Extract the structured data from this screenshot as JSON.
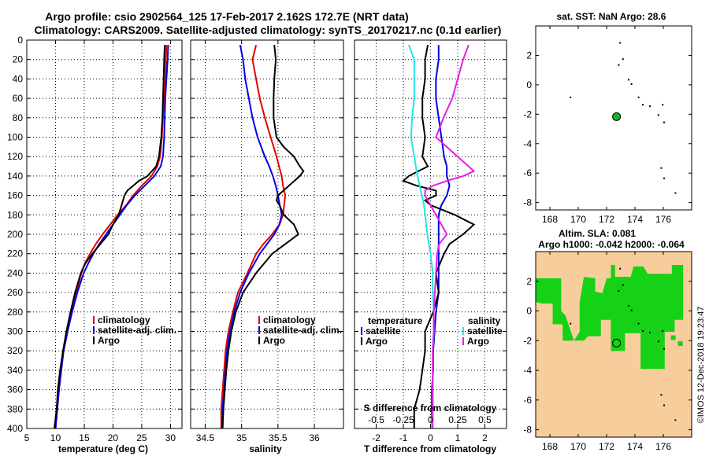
{
  "title_line1": "Argo profile: csio 2902564_125 17-Feb-2017 2.162S 172.7E (NRT data)",
  "title_line2": "Climatology: CARS2009. Satellite-adjusted climatology: synTS_20170217.nc (0.1d earlier)",
  "side_text": "©IMOS 12-Dec-2018 19:23:47",
  "colors": {
    "climatology": "#e00000",
    "satellite": "#0000e6",
    "argo": "#000000",
    "cyan": "#22e6e6",
    "magenta": "#e61ee6",
    "land": "#f8cd9c",
    "ocean": "#16d216",
    "station": "#1fb21f"
  },
  "chart_data": [
    {
      "type": "line",
      "id": "temperature",
      "xlabel": "temperature (deg C)",
      "ylabel": "depth",
      "xlim": [
        5,
        32
      ],
      "ylim": [
        400,
        0
      ],
      "xticks": [
        5,
        10,
        15,
        20,
        25,
        30
      ],
      "yticks": [
        0,
        20,
        40,
        60,
        80,
        100,
        120,
        140,
        160,
        180,
        200,
        220,
        240,
        260,
        280,
        300,
        320,
        340,
        360,
        380,
        400
      ],
      "legend": [
        "climatology",
        "satellite-adj. clim.",
        "Argo"
      ],
      "series": [
        {
          "name": "climatology",
          "depth": [
            5,
            20,
            40,
            60,
            80,
            100,
            120,
            130,
            140,
            150,
            160,
            170,
            180,
            190,
            200,
            210,
            220,
            230,
            240,
            260,
            280,
            300,
            320,
            340,
            360,
            380,
            400
          ],
          "values": [
            29.3,
            29.2,
            29.1,
            28.9,
            28.7,
            28.5,
            28.2,
            27.7,
            26.7,
            25.0,
            23.5,
            22.3,
            20.8,
            19.5,
            18.2,
            17.0,
            16.0,
            15.1,
            14.5,
            13.6,
            12.8,
            12.1,
            11.4,
            11.0,
            10.6,
            10.3,
            10.0
          ]
        },
        {
          "name": "satellite-adj. clim.",
          "depth": [
            5,
            20,
            40,
            60,
            80,
            100,
            120,
            130,
            140,
            150,
            160,
            170,
            180,
            190,
            200,
            210,
            220,
            230,
            240,
            260,
            280,
            300,
            320,
            340,
            360,
            380,
            400
          ],
          "values": [
            29.6,
            29.5,
            29.3,
            29.1,
            29.0,
            28.9,
            28.7,
            28.3,
            27.2,
            25.5,
            23.8,
            22.4,
            21.2,
            20.0,
            18.8,
            17.6,
            16.6,
            15.7,
            14.9,
            13.8,
            12.9,
            12.1,
            11.4,
            11.0,
            10.6,
            10.3,
            10.0
          ]
        },
        {
          "name": "Argo",
          "depth": [
            5,
            20,
            40,
            60,
            80,
            100,
            120,
            130,
            140,
            145,
            150,
            155,
            160,
            170,
            180,
            190,
            200,
            210,
            220,
            230,
            240,
            260,
            280,
            300,
            320,
            340,
            360,
            380,
            400
          ],
          "values": [
            29.0,
            28.9,
            28.8,
            28.7,
            28.6,
            28.4,
            28.0,
            27.5,
            26.0,
            24.5,
            23.5,
            22.5,
            22.0,
            21.5,
            21.0,
            20.0,
            19.2,
            17.8,
            16.4,
            15.2,
            14.4,
            13.4,
            12.6,
            11.9,
            11.3,
            10.8,
            10.4,
            10.2,
            9.8
          ]
        }
      ]
    },
    {
      "type": "line",
      "id": "salinity",
      "xlabel": "salinity",
      "xlim": [
        34.3,
        36.4
      ],
      "ylim": [
        400,
        0
      ],
      "xticks": [
        34.5,
        35,
        35.5,
        36
      ],
      "legend": [
        "climatology",
        "satellite-adj. clim.",
        "Argo"
      ],
      "series": [
        {
          "name": "climatology",
          "depth": [
            5,
            20,
            40,
            60,
            80,
            100,
            120,
            140,
            150,
            160,
            180,
            190,
            200,
            210,
            220,
            240,
            260,
            280,
            300,
            320,
            340,
            360,
            380,
            400
          ],
          "values": [
            35.2,
            35.15,
            35.2,
            35.25,
            35.32,
            35.4,
            35.48,
            35.55,
            35.57,
            35.6,
            35.57,
            35.52,
            35.42,
            35.3,
            35.2,
            35.08,
            34.95,
            34.88,
            34.82,
            34.78,
            34.76,
            34.74,
            34.72,
            34.72
          ]
        },
        {
          "name": "satellite-adj. clim.",
          "depth": [
            5,
            20,
            40,
            60,
            80,
            100,
            120,
            130,
            140,
            150,
            160,
            180,
            190,
            200,
            210,
            220,
            240,
            260,
            280,
            300,
            320,
            340,
            360,
            380,
            400
          ],
          "values": [
            34.98,
            35.02,
            35.05,
            35.1,
            35.15,
            35.22,
            35.32,
            35.38,
            35.43,
            35.47,
            35.5,
            35.55,
            35.52,
            35.45,
            35.35,
            35.25,
            35.1,
            34.98,
            34.9,
            34.84,
            34.8,
            34.78,
            34.76,
            34.74,
            34.73
          ]
        },
        {
          "name": "Argo",
          "depth": [
            5,
            20,
            40,
            60,
            80,
            100,
            110,
            120,
            130,
            135,
            140,
            150,
            160,
            165,
            170,
            180,
            190,
            200,
            210,
            220,
            240,
            260,
            280,
            300,
            320,
            340,
            360,
            380,
            400
          ],
          "values": [
            35.45,
            35.47,
            35.45,
            35.44,
            35.44,
            35.48,
            35.58,
            35.72,
            35.8,
            35.85,
            35.8,
            35.65,
            35.5,
            35.48,
            35.52,
            35.58,
            35.72,
            35.78,
            35.6,
            35.42,
            35.2,
            35.02,
            34.92,
            34.86,
            34.82,
            34.79,
            34.77,
            34.75,
            34.74
          ]
        }
      ]
    },
    {
      "type": "line",
      "id": "difference",
      "xlabel": "T difference from climatology",
      "top_label": "S difference from climatology",
      "xlim": [
        -2.8,
        2.8
      ],
      "ylim": [
        400,
        0
      ],
      "xticks": [
        -2,
        -1,
        0,
        1,
        2
      ],
      "top_ticks": [
        "-0.5",
        "-0.25",
        "0",
        "0.25",
        "0.5"
      ],
      "legend_temperature": {
        "title": "temperature",
        "items": [
          "satellite",
          "Argo"
        ]
      },
      "legend_salinity": {
        "title": "salinity",
        "items": [
          "satellite",
          "Argo"
        ]
      },
      "series": [
        {
          "name": "T satellite",
          "depth": [
            5,
            20,
            40,
            60,
            80,
            100,
            120,
            130,
            140,
            150,
            160,
            170,
            180,
            190,
            200,
            220,
            240,
            260,
            280,
            300,
            320,
            340,
            360,
            380,
            400
          ],
          "values": [
            0.3,
            0.3,
            0.2,
            0.2,
            0.3,
            0.4,
            0.5,
            0.6,
            0.6,
            0.7,
            0.6,
            0.4,
            0.3,
            0.3,
            0.3,
            0.3,
            0.3,
            0.3,
            0.2,
            0.15,
            0.1,
            0.1,
            0.05,
            0.05,
            0.05
          ]
        },
        {
          "name": "T Argo",
          "depth": [
            5,
            20,
            40,
            60,
            80,
            100,
            120,
            130,
            140,
            145,
            150,
            155,
            160,
            165,
            170,
            180,
            190,
            200,
            210,
            220,
            240,
            260,
            280,
            300,
            320,
            340,
            360,
            380,
            400
          ],
          "values": [
            -0.1,
            -0.2,
            -0.2,
            -0.3,
            -0.3,
            -0.2,
            -0.3,
            -0.1,
            -0.8,
            -1.0,
            -0.5,
            0.2,
            0.2,
            -0.2,
            0.0,
            0.9,
            1.6,
            1.2,
            0.7,
            0.5,
            0.2,
            0.3,
            0.1,
            -0.2,
            -0.2,
            -0.3,
            -0.4,
            -0.6,
            -0.6
          ]
        },
        {
          "name": "S satellite",
          "depth": [
            5,
            20,
            40,
            60,
            80,
            100,
            120,
            140,
            150,
            160,
            170,
            180,
            200,
            220,
            240,
            260,
            280,
            300,
            320,
            340,
            360,
            380,
            400
          ],
          "values": [
            -0.2,
            -0.15,
            -0.15,
            -0.15,
            -0.17,
            -0.18,
            -0.15,
            -0.12,
            -0.1,
            -0.08,
            -0.06,
            -0.05,
            -0.03,
            0.0,
            0.02,
            0.02,
            0.03,
            0.03,
            0.02,
            0.02,
            0.02,
            0.02,
            0.01
          ]
        },
        {
          "name": "S Argo",
          "depth": [
            5,
            20,
            40,
            60,
            80,
            100,
            110,
            120,
            130,
            135,
            140,
            145,
            150,
            155,
            160,
            170,
            180,
            190,
            200,
            210,
            220,
            240,
            260,
            280,
            300,
            320,
            340,
            360,
            380,
            400
          ],
          "values": [
            0.35,
            0.3,
            0.25,
            0.2,
            0.12,
            0.05,
            0.15,
            0.25,
            0.35,
            0.4,
            0.3,
            0.15,
            0.02,
            -0.05,
            -0.05,
            0.0,
            0.05,
            0.1,
            0.15,
            0.08,
            0.06,
            0.05,
            0.04,
            0.03,
            0.03,
            0.02,
            0.02,
            0.02,
            0.02,
            0.02
          ]
        }
      ]
    },
    {
      "type": "map",
      "id": "sst_map",
      "title": "sat. SST: NaN Argo: 28.6",
      "xlim": [
        167,
        178
      ],
      "ylim": [
        -8.5,
        4
      ],
      "xticks": [
        168,
        170,
        172,
        174,
        176
      ],
      "yticks": [
        -8,
        -6,
        -4,
        -2,
        0,
        2
      ],
      "station": {
        "lon": 172.7,
        "lat": -2.162
      }
    },
    {
      "type": "map",
      "id": "sla_map",
      "title_line1": "Altim. SLA: 0.081",
      "title_line2": "Argo h1000: -0.042 h2000: -0.064",
      "xlim": [
        167,
        178
      ],
      "ylim": [
        -8.5,
        4
      ],
      "xticks": [
        168,
        170,
        172,
        174,
        176
      ],
      "yticks": [
        -8,
        -6,
        -4,
        -2,
        0,
        2
      ],
      "station": {
        "lon": 172.7,
        "lat": -2.162
      }
    }
  ]
}
